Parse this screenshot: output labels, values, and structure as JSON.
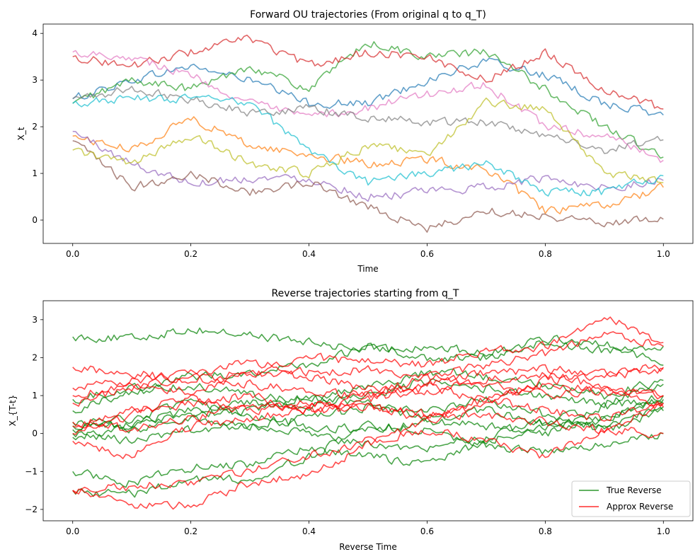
{
  "chart_data": [
    {
      "type": "line",
      "title": "Forward OU trajectories (From original q to q_T)",
      "xlabel": "Time",
      "ylabel": "X_t",
      "xlim": [
        -0.05,
        1.05
      ],
      "ylim": [
        -0.5,
        4.2
      ],
      "xticks": [
        0.0,
        0.2,
        0.4,
        0.6,
        0.8,
        1.0
      ],
      "xtick_labels": [
        "0.0",
        "0.2",
        "0.4",
        "0.6",
        "0.8",
        "1.0"
      ],
      "yticks": [
        0,
        1,
        2,
        3,
        4
      ],
      "ytick_labels": [
        "0",
        "1",
        "2",
        "3",
        "4"
      ],
      "line_opacity": 0.7,
      "series": [
        {
          "name": "path-1",
          "color": "#1f77b4",
          "x": [
            0,
            0.1,
            0.2,
            0.3,
            0.4,
            0.5,
            0.6,
            0.7,
            0.8,
            0.9,
            1.0
          ],
          "y": [
            2.6,
            3.0,
            3.3,
            3.0,
            2.5,
            2.5,
            3.0,
            3.4,
            3.1,
            2.5,
            2.25
          ]
        },
        {
          "name": "path-2",
          "color": "#ff7f0e",
          "x": [
            0,
            0.1,
            0.2,
            0.3,
            0.4,
            0.5,
            0.6,
            0.7,
            0.8,
            0.9,
            1.0
          ],
          "y": [
            1.8,
            1.5,
            2.2,
            1.6,
            1.4,
            1.2,
            1.3,
            1.1,
            0.2,
            0.3,
            0.7
          ]
        },
        {
          "name": "path-3",
          "color": "#2ca02c",
          "x": [
            0,
            0.1,
            0.2,
            0.3,
            0.4,
            0.5,
            0.6,
            0.7,
            0.8,
            0.9,
            1.0
          ],
          "y": [
            2.5,
            3.0,
            2.8,
            3.3,
            2.8,
            3.8,
            3.5,
            3.6,
            2.8,
            2.0,
            1.35
          ]
        },
        {
          "name": "path-4",
          "color": "#d62728",
          "x": [
            0,
            0.1,
            0.2,
            0.3,
            0.4,
            0.5,
            0.6,
            0.7,
            0.8,
            0.9,
            1.0
          ],
          "y": [
            3.5,
            3.3,
            3.6,
            3.9,
            3.3,
            3.6,
            3.5,
            3.0,
            3.6,
            2.8,
            2.38
          ]
        },
        {
          "name": "path-5",
          "color": "#9467bd",
          "x": [
            0,
            0.1,
            0.2,
            0.3,
            0.4,
            0.5,
            0.6,
            0.7,
            0.8,
            0.9,
            1.0
          ],
          "y": [
            1.9,
            1.2,
            0.8,
            0.9,
            0.9,
            0.5,
            0.6,
            0.7,
            0.9,
            0.7,
            0.85
          ]
        },
        {
          "name": "path-6",
          "color": "#8c564b",
          "x": [
            0,
            0.1,
            0.2,
            0.3,
            0.4,
            0.5,
            0.6,
            0.7,
            0.8,
            0.9,
            1.0
          ],
          "y": [
            1.7,
            0.7,
            1.0,
            0.6,
            0.8,
            0.3,
            -0.2,
            0.2,
            0.1,
            -0.05,
            0.02
          ]
        },
        {
          "name": "path-7",
          "color": "#e377c2",
          "x": [
            0,
            0.1,
            0.2,
            0.3,
            0.4,
            0.5,
            0.6,
            0.7,
            0.8,
            0.9,
            1.0
          ],
          "y": [
            3.6,
            3.5,
            3.1,
            2.5,
            2.2,
            2.4,
            2.7,
            2.9,
            2.0,
            1.8,
            1.28
          ]
        },
        {
          "name": "path-8",
          "color": "#7f7f7f",
          "x": [
            0,
            0.1,
            0.2,
            0.3,
            0.4,
            0.5,
            0.6,
            0.7,
            0.8,
            0.9,
            1.0
          ],
          "y": [
            2.6,
            2.8,
            2.6,
            2.3,
            2.4,
            2.2,
            2.1,
            2.1,
            1.8,
            1.5,
            1.72
          ]
        },
        {
          "name": "path-9",
          "color": "#bcbd22",
          "x": [
            0,
            0.1,
            0.2,
            0.3,
            0.4,
            0.5,
            0.6,
            0.7,
            0.8,
            0.9,
            1.0
          ],
          "y": [
            1.5,
            1.2,
            1.8,
            1.2,
            1.0,
            1.6,
            1.4,
            2.5,
            2.4,
            1.0,
            0.8
          ]
        },
        {
          "name": "path-10",
          "color": "#17becf",
          "x": [
            0,
            0.1,
            0.2,
            0.3,
            0.4,
            0.5,
            0.6,
            0.7,
            0.8,
            0.9,
            1.0
          ],
          "y": [
            2.5,
            2.6,
            2.6,
            2.5,
            1.5,
            0.8,
            1.0,
            1.2,
            0.6,
            0.6,
            0.95
          ]
        }
      ]
    },
    {
      "type": "line",
      "title": "Reverse trajectories starting from q_T",
      "xlabel": "Reverse Time",
      "ylabel": "X_{T-t}",
      "xlim": [
        -0.05,
        1.05
      ],
      "ylim": [
        -2.3,
        3.5
      ],
      "xticks": [
        0.0,
        0.2,
        0.4,
        0.6,
        0.8,
        1.0
      ],
      "xtick_labels": [
        "0.0",
        "0.2",
        "0.4",
        "0.6",
        "0.8",
        "1.0"
      ],
      "yticks": [
        -2,
        -1,
        0,
        1,
        2,
        3
      ],
      "ytick_labels": [
        "−2",
        "−1",
        "0",
        "1",
        "2",
        "3"
      ],
      "line_opacity": 0.7,
      "legend": {
        "position": "bottom-right",
        "entries": [
          {
            "label": "True Reverse",
            "color": "#008000"
          },
          {
            "label": "Approx Reverse",
            "color": "#ff0000"
          }
        ]
      },
      "series": [
        {
          "name": "true-1",
          "group": "True Reverse",
          "color": "#008000",
          "x": [
            0,
            0.1,
            0.2,
            0.3,
            0.4,
            0.5,
            0.6,
            0.7,
            0.8,
            0.9,
            1.0
          ],
          "y": [
            2.55,
            2.5,
            2.75,
            2.6,
            2.4,
            2.2,
            2.3,
            2.1,
            2.4,
            2.2,
            2.3
          ]
        },
        {
          "name": "true-2",
          "group": "True Reverse",
          "color": "#008000",
          "x": [
            0,
            0.1,
            0.2,
            0.3,
            0.4,
            0.5,
            0.6,
            0.7,
            0.8,
            0.9,
            1.0
          ],
          "y": [
            0.9,
            1.2,
            1.5,
            1.6,
            1.8,
            2.3,
            2.0,
            2.0,
            2.5,
            2.4,
            1.8
          ]
        },
        {
          "name": "true-3",
          "group": "True Reverse",
          "color": "#008000",
          "x": [
            0,
            0.1,
            0.2,
            0.3,
            0.4,
            0.5,
            0.6,
            0.7,
            0.8,
            0.9,
            1.0
          ],
          "y": [
            -1.0,
            -1.3,
            -0.9,
            -0.8,
            -0.4,
            -0.6,
            -0.8,
            -0.2,
            0.2,
            0.4,
            0.8
          ]
        },
        {
          "name": "true-4",
          "group": "True Reverse",
          "color": "#008000",
          "x": [
            0,
            0.1,
            0.2,
            0.3,
            0.4,
            0.5,
            0.6,
            0.7,
            0.8,
            0.9,
            1.0
          ],
          "y": [
            -1.5,
            -1.6,
            -1.2,
            -1.2,
            -0.6,
            0.2,
            0.1,
            -0.3,
            -0.5,
            -0.3,
            0.0
          ]
        },
        {
          "name": "true-5",
          "group": "True Reverse",
          "color": "#008000",
          "x": [
            0,
            0.1,
            0.2,
            0.3,
            0.4,
            0.5,
            0.6,
            0.7,
            0.8,
            0.9,
            1.0
          ],
          "y": [
            0.2,
            0.4,
            0.8,
            0.5,
            0.2,
            0.1,
            0.3,
            0.2,
            0.0,
            0.4,
            0.9
          ]
        },
        {
          "name": "true-6",
          "group": "True Reverse",
          "color": "#008000",
          "x": [
            0,
            0.1,
            0.2,
            0.3,
            0.4,
            0.5,
            0.6,
            0.7,
            0.8,
            0.9,
            1.0
          ],
          "y": [
            0.1,
            0.3,
            0.6,
            0.8,
            0.7,
            1.0,
            1.4,
            1.2,
            1.0,
            0.8,
            1.3
          ]
        },
        {
          "name": "true-7",
          "group": "True Reverse",
          "color": "#008000",
          "x": [
            0,
            0.1,
            0.2,
            0.3,
            0.4,
            0.5,
            0.6,
            0.7,
            0.8,
            0.9,
            1.0
          ],
          "y": [
            0.3,
            0.1,
            0.4,
            0.2,
            0.4,
            0.7,
            0.4,
            0.6,
            0.3,
            0.2,
            0.7
          ]
        },
        {
          "name": "true-8",
          "group": "True Reverse",
          "color": "#008000",
          "x": [
            0,
            0.1,
            0.2,
            0.3,
            0.4,
            0.5,
            0.6,
            0.7,
            0.8,
            0.9,
            1.0
          ],
          "y": [
            0.6,
            1.1,
            1.3,
            1.0,
            0.9,
            1.2,
            1.6,
            1.5,
            1.3,
            1.0,
            1.4
          ]
        },
        {
          "name": "true-9",
          "group": "True Reverse",
          "color": "#008000",
          "x": [
            0,
            0.1,
            0.2,
            0.3,
            0.4,
            0.5,
            0.6,
            0.7,
            0.8,
            0.9,
            1.0
          ],
          "y": [
            -0.1,
            0.2,
            0.5,
            0.6,
            1.0,
            0.8,
            0.6,
            0.9,
            0.5,
            0.1,
            0.6
          ]
        },
        {
          "name": "true-10",
          "group": "True Reverse",
          "color": "#008000",
          "x": [
            0,
            0.1,
            0.2,
            0.3,
            0.4,
            0.5,
            0.6,
            0.7,
            0.8,
            0.9,
            1.0
          ],
          "y": [
            0.0,
            -0.2,
            0.1,
            0.2,
            0.0,
            -0.3,
            -0.4,
            -0.1,
            0.3,
            0.7,
            1.0
          ]
        },
        {
          "name": "approx-1",
          "group": "Approx Reverse",
          "color": "#ff0000",
          "x": [
            0,
            0.1,
            0.2,
            0.3,
            0.4,
            0.5,
            0.6,
            0.7,
            0.8,
            0.9,
            1.0
          ],
          "y": [
            1.75,
            1.6,
            1.4,
            1.6,
            2.0,
            1.9,
            1.8,
            2.2,
            2.3,
            3.1,
            2.4
          ]
        },
        {
          "name": "approx-2",
          "group": "Approx Reverse",
          "color": "#ff0000",
          "x": [
            0,
            0.1,
            0.2,
            0.3,
            0.4,
            0.5,
            0.6,
            0.7,
            0.8,
            0.9,
            1.0
          ],
          "y": [
            1.2,
            1.4,
            1.6,
            1.9,
            1.6,
            1.7,
            1.5,
            1.8,
            2.1,
            2.6,
            2.3
          ]
        },
        {
          "name": "approx-3",
          "group": "Approx Reverse",
          "color": "#ff0000",
          "x": [
            0,
            0.1,
            0.2,
            0.3,
            0.4,
            0.5,
            0.6,
            0.7,
            0.8,
            0.9,
            1.0
          ],
          "y": [
            -1.5,
            -1.9,
            -1.9,
            -1.3,
            -1.1,
            -0.3,
            0.4,
            0.8,
            1.4,
            1.5,
            1.7
          ]
        },
        {
          "name": "approx-4",
          "group": "Approx Reverse",
          "color": "#ff0000",
          "x": [
            0,
            0.1,
            0.2,
            0.3,
            0.4,
            0.5,
            0.6,
            0.7,
            0.8,
            0.9,
            1.0
          ],
          "y": [
            0.3,
            0.1,
            0.4,
            0.8,
            0.7,
            1.0,
            1.3,
            1.6,
            1.7,
            1.6,
            1.75
          ]
        },
        {
          "name": "approx-5",
          "group": "Approx Reverse",
          "color": "#ff0000",
          "x": [
            0,
            0.1,
            0.2,
            0.3,
            0.4,
            0.5,
            0.6,
            0.7,
            0.8,
            0.9,
            1.0
          ],
          "y": [
            -0.2,
            -0.6,
            0.2,
            0.4,
            0.6,
            0.9,
            1.2,
            0.9,
            0.6,
            0.4,
            0.8
          ]
        },
        {
          "name": "approx-6",
          "group": "Approx Reverse",
          "color": "#ff0000",
          "x": [
            0,
            0.1,
            0.2,
            0.3,
            0.4,
            0.5,
            0.6,
            0.7,
            0.8,
            0.9,
            1.0
          ],
          "y": [
            0.8,
            1.2,
            1.5,
            1.3,
            1.1,
            1.0,
            1.5,
            1.3,
            1.0,
            1.2,
            1.0
          ]
        },
        {
          "name": "approx-7",
          "group": "Approx Reverse",
          "color": "#ff0000",
          "x": [
            0,
            0.1,
            0.2,
            0.3,
            0.4,
            0.5,
            0.6,
            0.7,
            0.8,
            0.9,
            1.0
          ],
          "y": [
            0.2,
            0.6,
            0.9,
            0.6,
            0.8,
            0.7,
            0.4,
            0.5,
            0.3,
            0.1,
            0.0
          ]
        },
        {
          "name": "approx-8",
          "group": "Approx Reverse",
          "color": "#ff0000",
          "x": [
            0,
            0.1,
            0.2,
            0.3,
            0.4,
            0.5,
            0.6,
            0.7,
            0.8,
            0.9,
            1.0
          ],
          "y": [
            0.0,
            0.5,
            0.8,
            1.0,
            0.6,
            0.7,
            0.5,
            0.9,
            1.3,
            1.1,
            0.7
          ]
        },
        {
          "name": "approx-9",
          "group": "Approx Reverse",
          "color": "#ff0000",
          "x": [
            0,
            0.1,
            0.2,
            0.3,
            0.4,
            0.5,
            0.6,
            0.7,
            0.8,
            0.9,
            1.0
          ],
          "y": [
            -1.5,
            -1.4,
            -1.3,
            -1.0,
            -0.6,
            -0.2,
            0.1,
            -0.2,
            -0.6,
            0.1,
            0.8
          ]
        },
        {
          "name": "approx-10",
          "group": "Approx Reverse",
          "color": "#ff0000",
          "x": [
            0,
            0.1,
            0.2,
            0.3,
            0.4,
            0.5,
            0.6,
            0.7,
            0.8,
            0.9,
            1.0
          ],
          "y": [
            1.0,
            1.3,
            1.1,
            1.6,
            1.5,
            1.2,
            1.1,
            1.4,
            1.6,
            1.2,
            1.0
          ]
        }
      ]
    }
  ]
}
